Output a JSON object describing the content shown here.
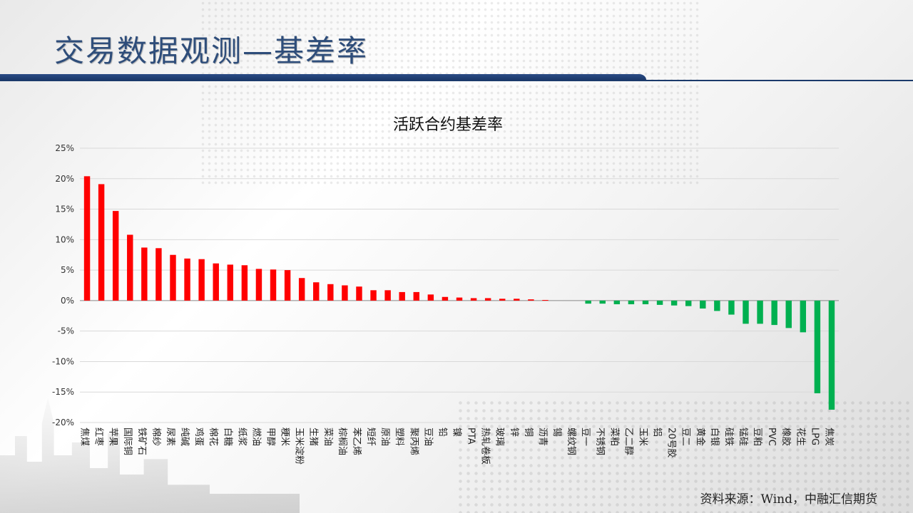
{
  "page": {
    "title": "交易数据观测—基差率",
    "source": "资料来源：Wind，中融汇信期货"
  },
  "colors": {
    "positive": "#ff0000",
    "negative": "#00b050",
    "title": "#2e4d7a",
    "grid": "#d9d9d9"
  },
  "chart_data": {
    "type": "bar",
    "title": "活跃合约基差率",
    "xlabel": "",
    "ylabel": "",
    "ylim": [
      -0.2,
      0.25
    ],
    "yticks": [
      0.25,
      0.2,
      0.15,
      0.1,
      0.05,
      0,
      -0.05,
      -0.1,
      -0.15,
      -0.2
    ],
    "ytick_labels": [
      "25%",
      "20%",
      "15%",
      "10%",
      "5%",
      "0%",
      "-5%",
      "-10%",
      "-15%",
      "-20%"
    ],
    "grid": true,
    "legend": "none",
    "categories": [
      "焦煤",
      "红枣",
      "苹果",
      "国际铜",
      "铁矿石",
      "棉纱",
      "尿素",
      "纯碱",
      "鸡蛋",
      "棉花",
      "白糖",
      "纸浆",
      "燃油",
      "甲醇",
      "粳米",
      "玉米淀粉",
      "生猪",
      "菜油",
      "棕榈油",
      "苯乙烯",
      "短纤",
      "原油",
      "塑料",
      "聚丙烯",
      "豆油",
      "铅",
      "镍",
      "PTA",
      "热轧卷板",
      "玻璃",
      "锌",
      "铜",
      "沥青",
      "锡",
      "螺纹钢",
      "豆一",
      "不锈钢",
      "菜粕",
      "乙二醇",
      "玉米",
      "铝",
      "20号胶",
      "豆二",
      "黄金",
      "白银",
      "硅铁",
      "锰硅",
      "豆粕",
      "PVC",
      "橡胶",
      "花生",
      "LPG",
      "焦炭"
    ],
    "values": [
      0.204,
      0.191,
      0.147,
      0.108,
      0.087,
      0.086,
      0.075,
      0.069,
      0.068,
      0.061,
      0.059,
      0.058,
      0.052,
      0.051,
      0.05,
      0.037,
      0.03,
      0.027,
      0.025,
      0.023,
      0.017,
      0.017,
      0.014,
      0.014,
      0.01,
      0.006,
      0.005,
      0.004,
      0.004,
      0.003,
      0.003,
      0.002,
      0.001,
      0.0,
      0.0,
      -0.005,
      -0.005,
      -0.006,
      -0.006,
      -0.006,
      -0.007,
      -0.008,
      -0.009,
      -0.013,
      -0.017,
      -0.023,
      -0.038,
      -0.038,
      -0.04,
      -0.045,
      -0.052,
      -0.152,
      -0.179
    ]
  }
}
